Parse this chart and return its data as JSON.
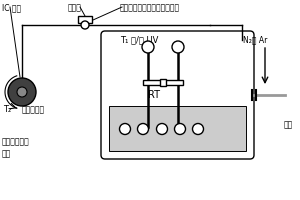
{
  "bg_color": "#ffffff",
  "label_spool": "IC 型材",
  "label_winding_axis": "缠绕轴",
  "label_traverse": "横动排纱（用于纳维带、束）",
  "label_T1_UV": "T₁ 和/或 UV",
  "label_T2": "T₂",
  "label_temp_zone": "温度梯度区",
  "label_RT": "RT",
  "label_N2Ar": "N₂或 Ar",
  "label_fiber": "纵维",
  "label_ceramic": "陶瓷基体的元\n驱体"
}
